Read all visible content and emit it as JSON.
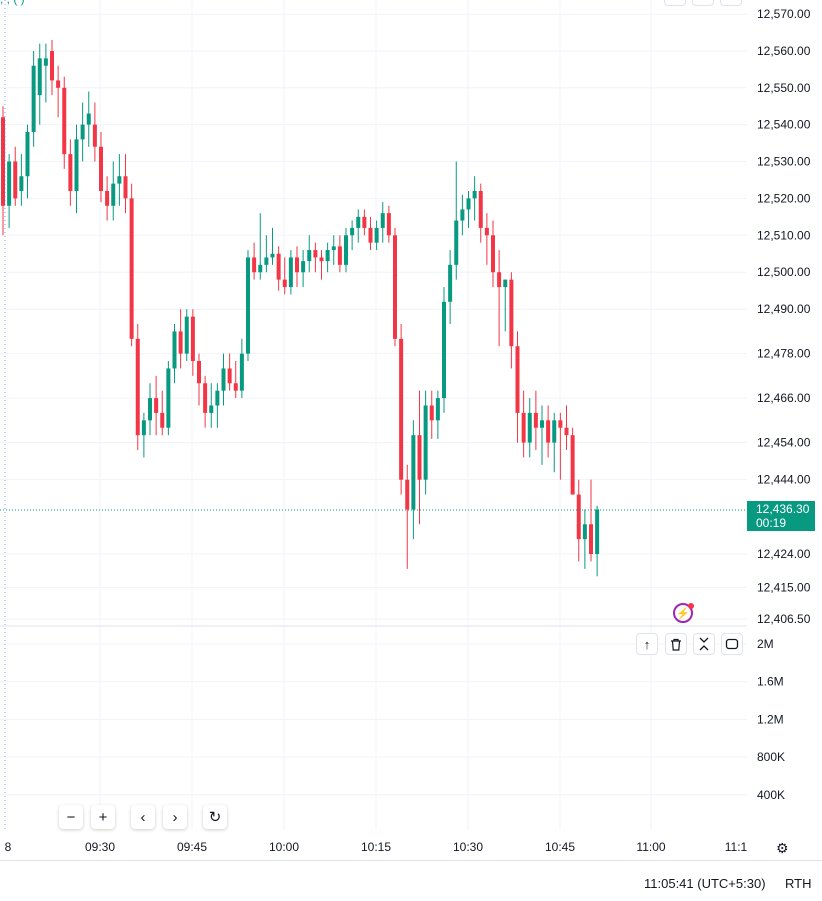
{
  "header": {
    "title_fragment": ",    ,      (    )"
  },
  "price_axis": {
    "labels": [
      "12,570.00",
      "12,560.00",
      "12,550.00",
      "12,540.00",
      "12,530.00",
      "12,520.00",
      "12,510.00",
      "12,500.00",
      "12,490.00",
      "12,478.00",
      "12,466.00",
      "12,454.00",
      "12,444.00",
      "12,424.00",
      "12,415.00",
      "12,406.50"
    ]
  },
  "last_price": {
    "value": "12,436.30",
    "countdown": "00:19"
  },
  "volume_axis": {
    "labels": [
      "2M",
      "1.6M",
      "1.2M",
      "800K",
      "400K"
    ]
  },
  "time_axis": {
    "labels": [
      "8",
      "09:30",
      "09:45",
      "10:00",
      "10:15",
      "10:30",
      "10:45",
      "11:00",
      "11:1"
    ]
  },
  "status": {
    "clock": "11:05:41 (UTC+5:30)",
    "session": "RTH"
  },
  "colors": {
    "up": "#089981",
    "down": "#f23645",
    "grid": "#f0f3fa",
    "accent": "#9c27b0"
  },
  "icons": {
    "pane": [
      "arrow-up-icon",
      "trash-icon",
      "collapse-icon",
      "maximize-icon"
    ],
    "nav": [
      "zoom-out-icon",
      "zoom-in-icon",
      "scroll-left-icon",
      "scroll-right-icon",
      "reset-icon"
    ]
  },
  "chart_data": {
    "type": "candlestick",
    "interval": "1 minute",
    "ylim": [
      12406.5,
      12572
    ],
    "y_scale": "log",
    "grid": true,
    "time_ticks": [
      "09:30",
      "09:45",
      "10:00",
      "10:15",
      "10:30",
      "10:45",
      "11:00"
    ],
    "candles": [
      [
        12542,
        12545,
        12510,
        12518
      ],
      [
        12518,
        12532,
        12512,
        12530
      ],
      [
        12530,
        12534,
        12518,
        12520
      ],
      [
        12522,
        12532,
        12518,
        12526
      ],
      [
        12526,
        12540,
        12520,
        12538
      ],
      [
        12538,
        12560,
        12534,
        12556
      ],
      [
        12548,
        12562,
        12540,
        12558
      ],
      [
        12556,
        12562,
        12546,
        12558
      ],
      [
        12560,
        12563,
        12548,
        12552
      ],
      [
        12552,
        12556,
        12542,
        12550
      ],
      [
        12550,
        12553,
        12528,
        12532
      ],
      [
        12532,
        12536,
        12518,
        12522
      ],
      [
        12522,
        12540,
        12516,
        12536
      ],
      [
        12536,
        12546,
        12530,
        12540
      ],
      [
        12540,
        12549,
        12534,
        12543
      ],
      [
        12540,
        12546,
        12530,
        12534
      ],
      [
        12534,
        12538,
        12519,
        12522
      ],
      [
        12522,
        12526,
        12514,
        12518
      ],
      [
        12518,
        12530,
        12514,
        12524
      ],
      [
        12524,
        12532,
        12518,
        12526
      ],
      [
        12526,
        12532,
        12516,
        12520
      ],
      [
        12520,
        12524,
        12480,
        12482
      ],
      [
        12482,
        12486,
        12452,
        12456
      ],
      [
        12456,
        12462,
        12450,
        12460
      ],
      [
        12460,
        12470,
        12456,
        12466
      ],
      [
        12466,
        12472,
        12456,
        12462
      ],
      [
        12462,
        12468,
        12456,
        12458
      ],
      [
        12458,
        12476,
        12456,
        12474
      ],
      [
        12474,
        12486,
        12470,
        12484
      ],
      [
        12484,
        12490,
        12474,
        12478
      ],
      [
        12478,
        12490,
        12476,
        12488
      ],
      [
        12488,
        12490,
        12472,
        12476
      ],
      [
        12476,
        12478,
        12464,
        12470
      ],
      [
        12470,
        12472,
        12458,
        12462
      ],
      [
        12462,
        12470,
        12458,
        12464
      ],
      [
        12464,
        12470,
        12458,
        12468
      ],
      [
        12468,
        12478,
        12464,
        12474
      ],
      [
        12474,
        12478,
        12468,
        12470
      ],
      [
        12470,
        12476,
        12466,
        12468
      ],
      [
        12468,
        12482,
        12466,
        12478
      ],
      [
        12478,
        12506,
        12476,
        12504
      ],
      [
        12504,
        12508,
        12498,
        12500
      ],
      [
        12500,
        12516,
        12498,
        12502
      ],
      [
        12502,
        12510,
        12500,
        12504
      ],
      [
        12504,
        12512,
        12502,
        12505
      ],
      [
        12505,
        12507,
        12495,
        12498
      ],
      [
        12498,
        12504,
        12494,
        12496
      ],
      [
        12496,
        12506,
        12494,
        12504
      ],
      [
        12504,
        12507,
        12496,
        12500
      ],
      [
        12500,
        12506,
        12496,
        12503
      ],
      [
        12503,
        12510,
        12500,
        12506
      ],
      [
        12506,
        12508,
        12500,
        12504
      ],
      [
        12504,
        12506,
        12498,
        12503
      ],
      [
        12503,
        12508,
        12500,
        12506
      ],
      [
        12506,
        12510,
        12502,
        12507
      ],
      [
        12507,
        12510,
        12500,
        12502
      ],
      [
        12502,
        12512,
        12500,
        12510
      ],
      [
        12510,
        12514,
        12506,
        12512
      ],
      [
        12512,
        12517,
        12508,
        12515
      ],
      [
        12515,
        12517,
        12510,
        12512
      ],
      [
        12512,
        12515,
        12506,
        12508
      ],
      [
        12508,
        12514,
        12506,
        12512
      ],
      [
        12512,
        12519,
        12508,
        12516
      ],
      [
        12516,
        12518,
        12508,
        12510
      ],
      [
        12510,
        12512,
        12480,
        12482
      ],
      [
        12482,
        12486,
        12440,
        12444
      ],
      [
        12444,
        12448,
        12420,
        12436
      ],
      [
        12436,
        12460,
        12428,
        12456
      ],
      [
        12456,
        12468,
        12432,
        12444
      ],
      [
        12444,
        12468,
        12440,
        12464
      ],
      [
        12464,
        12468,
        12455,
        12460
      ],
      [
        12460,
        12468,
        12455,
        12466
      ],
      [
        12466,
        12496,
        12462,
        12492
      ],
      [
        12492,
        12506,
        12486,
        12502
      ],
      [
        12502,
        12530,
        12498,
        12514
      ],
      [
        12514,
        12521,
        12510,
        12517
      ],
      [
        12517,
        12522,
        12512,
        12520
      ],
      [
        12520,
        12526,
        12514,
        12522
      ],
      [
        12522,
        12524,
        12508,
        12512
      ],
      [
        12512,
        12516,
        12502,
        12510
      ],
      [
        12510,
        12514,
        12496,
        12500
      ],
      [
        12500,
        12506,
        12480,
        12496
      ],
      [
        12496,
        12498,
        12484,
        12498
      ],
      [
        12498,
        12500,
        12474,
        12480
      ],
      [
        12480,
        12484,
        12454,
        12462
      ],
      [
        12462,
        12468,
        12450,
        12454
      ],
      [
        12454,
        12466,
        12450,
        12462
      ],
      [
        12462,
        12468,
        12452,
        12458
      ],
      [
        12458,
        12464,
        12448,
        12460
      ],
      [
        12460,
        12464,
        12450,
        12454
      ],
      [
        12454,
        12462,
        12446,
        12460
      ],
      [
        12460,
        12462,
        12444,
        12458
      ],
      [
        12458,
        12464,
        12452,
        12456
      ],
      [
        12456,
        12458,
        12440,
        12440
      ],
      [
        12440,
        12444,
        12422,
        12428
      ],
      [
        12428,
        12436,
        12420,
        12432
      ],
      [
        12432,
        12444,
        12422,
        12424
      ],
      [
        12424,
        12437,
        12418,
        12436
      ]
    ],
    "current_price": 12436.3
  }
}
